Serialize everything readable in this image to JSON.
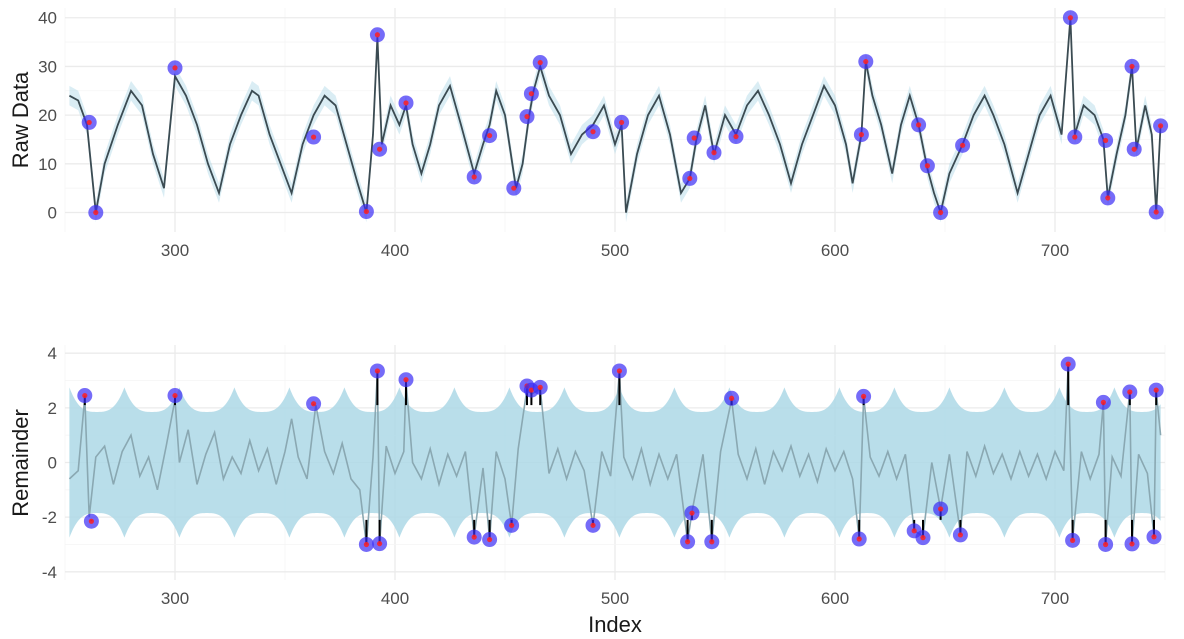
{
  "chart_data": [
    {
      "type": "line",
      "panel": "top",
      "ylabel": "Raw Data",
      "xlabel": "",
      "xlim": [
        250,
        750
      ],
      "ylim": [
        -4,
        42
      ],
      "x_ticks": [
        300,
        400,
        500,
        600,
        700
      ],
      "y_ticks": [
        0,
        10,
        20,
        30,
        40
      ],
      "grid": true,
      "band": "confidence band (light blue) around raw series",
      "series_points": [
        [
          252,
          24
        ],
        [
          256,
          23
        ],
        [
          260,
          18
        ],
        [
          264,
          0
        ],
        [
          268,
          10
        ],
        [
          274,
          18
        ],
        [
          280,
          25
        ],
        [
          285,
          22
        ],
        [
          290,
          12
        ],
        [
          295,
          5
        ],
        [
          300,
          28
        ],
        [
          305,
          24
        ],
        [
          310,
          18
        ],
        [
          315,
          10
        ],
        [
          320,
          4
        ],
        [
          325,
          14
        ],
        [
          330,
          20
        ],
        [
          335,
          25
        ],
        [
          338,
          24
        ],
        [
          343,
          16
        ],
        [
          348,
          10
        ],
        [
          353,
          4
        ],
        [
          358,
          14
        ],
        [
          363,
          20
        ],
        [
          368,
          24
        ],
        [
          373,
          22
        ],
        [
          378,
          14
        ],
        [
          383,
          6
        ],
        [
          387,
          0
        ],
        [
          390,
          16
        ],
        [
          392,
          36
        ],
        [
          394,
          14
        ],
        [
          398,
          22
        ],
        [
          402,
          18
        ],
        [
          405,
          22
        ],
        [
          408,
          14
        ],
        [
          412,
          8
        ],
        [
          416,
          14
        ],
        [
          420,
          22
        ],
        [
          425,
          26
        ],
        [
          430,
          18
        ],
        [
          436,
          8
        ],
        [
          440,
          14
        ],
        [
          443,
          18
        ],
        [
          446,
          25
        ],
        [
          450,
          20
        ],
        [
          455,
          5
        ],
        [
          458,
          10
        ],
        [
          461,
          20
        ],
        [
          463,
          25
        ],
        [
          466,
          30
        ],
        [
          470,
          24
        ],
        [
          475,
          20
        ],
        [
          480,
          12
        ],
        [
          485,
          16
        ],
        [
          490,
          18
        ],
        [
          495,
          22
        ],
        [
          500,
          14
        ],
        [
          503,
          18
        ],
        [
          505,
          0
        ],
        [
          510,
          12
        ],
        [
          515,
          20
        ],
        [
          520,
          24
        ],
        [
          525,
          16
        ],
        [
          530,
          4
        ],
        [
          534,
          7
        ],
        [
          537,
          15
        ],
        [
          541,
          22
        ],
        [
          545,
          12
        ],
        [
          550,
          20
        ],
        [
          555,
          16
        ],
        [
          560,
          22
        ],
        [
          565,
          25
        ],
        [
          570,
          20
        ],
        [
          575,
          14
        ],
        [
          580,
          6
        ],
        [
          585,
          14
        ],
        [
          590,
          20
        ],
        [
          595,
          26
        ],
        [
          600,
          22
        ],
        [
          605,
          14
        ],
        [
          608,
          6
        ],
        [
          612,
          16
        ],
        [
          614,
          31
        ],
        [
          617,
          24
        ],
        [
          621,
          18
        ],
        [
          626,
          8
        ],
        [
          630,
          18
        ],
        [
          634,
          24
        ],
        [
          638,
          18
        ],
        [
          642,
          9
        ],
        [
          645,
          4
        ],
        [
          648,
          0
        ],
        [
          652,
          8
        ],
        [
          658,
          14
        ],
        [
          663,
          20
        ],
        [
          668,
          24
        ],
        [
          672,
          20
        ],
        [
          677,
          14
        ],
        [
          683,
          4
        ],
        [
          688,
          12
        ],
        [
          693,
          20
        ],
        [
          698,
          24
        ],
        [
          703,
          16
        ],
        [
          707,
          40
        ],
        [
          709,
          16
        ],
        [
          713,
          22
        ],
        [
          718,
          20
        ],
        [
          722,
          15
        ],
        [
          724,
          3
        ],
        [
          728,
          12
        ],
        [
          732,
          20
        ],
        [
          735,
          30
        ],
        [
          737,
          13
        ],
        [
          741,
          22
        ],
        [
          744,
          16
        ],
        [
          746,
          0
        ],
        [
          748,
          18
        ]
      ],
      "outliers": [
        {
          "x": 261,
          "y": 18.5
        },
        {
          "x": 264,
          "y": 0
        },
        {
          "x": 300,
          "y": 29.7
        },
        {
          "x": 363,
          "y": 15.5
        },
        {
          "x": 387,
          "y": 0.2
        },
        {
          "x": 392,
          "y": 36.5
        },
        {
          "x": 393,
          "y": 13
        },
        {
          "x": 405,
          "y": 22.5
        },
        {
          "x": 436,
          "y": 7.3
        },
        {
          "x": 443,
          "y": 15.8
        },
        {
          "x": 454,
          "y": 5
        },
        {
          "x": 460,
          "y": 19.7
        },
        {
          "x": 462,
          "y": 24.4
        },
        {
          "x": 466,
          "y": 30.8
        },
        {
          "x": 490,
          "y": 16.6
        },
        {
          "x": 503,
          "y": 18.5
        },
        {
          "x": 534,
          "y": 7
        },
        {
          "x": 536,
          "y": 15.3
        },
        {
          "x": 545,
          "y": 12.3
        },
        {
          "x": 555,
          "y": 15.6
        },
        {
          "x": 612,
          "y": 16
        },
        {
          "x": 614,
          "y": 31
        },
        {
          "x": 638,
          "y": 18
        },
        {
          "x": 642,
          "y": 9.6
        },
        {
          "x": 648,
          "y": 0
        },
        {
          "x": 658,
          "y": 13.8
        },
        {
          "x": 707,
          "y": 40
        },
        {
          "x": 709,
          "y": 15.5
        },
        {
          "x": 723,
          "y": 14.8
        },
        {
          "x": 724,
          "y": 3
        },
        {
          "x": 735,
          "y": 30
        },
        {
          "x": 736,
          "y": 13
        },
        {
          "x": 746,
          "y": 0.1
        },
        {
          "x": 748,
          "y": 17.8
        }
      ]
    },
    {
      "type": "line",
      "panel": "bottom",
      "ylabel": "Remainder",
      "xlabel": "Index",
      "xlim": [
        250,
        750
      ],
      "ylim": [
        -4.3,
        4.3
      ],
      "x_ticks": [
        300,
        400,
        500,
        600,
        700
      ],
      "y_ticks": [
        -4,
        -2,
        0,
        2,
        4
      ],
      "grid": true,
      "band_bounds": [
        -2.1,
        2.1
      ],
      "series_points": [
        [
          252,
          -0.6
        ],
        [
          256,
          -0.3
        ],
        [
          259,
          2.4
        ],
        [
          261,
          -2.0
        ],
        [
          264,
          0.2
        ],
        [
          268,
          0.6
        ],
        [
          272,
          -0.8
        ],
        [
          276,
          0.4
        ],
        [
          280,
          1.0
        ],
        [
          284,
          -0.5
        ],
        [
          288,
          0.2
        ],
        [
          292,
          -1.0
        ],
        [
          296,
          0.6
        ],
        [
          300,
          2.3
        ],
        [
          302,
          0.0
        ],
        [
          306,
          1.2
        ],
        [
          310,
          -0.8
        ],
        [
          314,
          0.3
        ],
        [
          318,
          1.1
        ],
        [
          322,
          -0.6
        ],
        [
          326,
          0.2
        ],
        [
          330,
          -0.4
        ],
        [
          334,
          0.8
        ],
        [
          338,
          -0.3
        ],
        [
          342,
          0.5
        ],
        [
          346,
          -0.8
        ],
        [
          350,
          0.4
        ],
        [
          353,
          1.6
        ],
        [
          356,
          0.2
        ],
        [
          360,
          -0.6
        ],
        [
          364,
          2.1
        ],
        [
          368,
          0.4
        ],
        [
          372,
          -0.4
        ],
        [
          376,
          0.7
        ],
        [
          380,
          -0.6
        ],
        [
          384,
          -1.0
        ],
        [
          387,
          -3.0
        ],
        [
          390,
          0.2
        ],
        [
          392,
          3.3
        ],
        [
          393,
          -3.0
        ],
        [
          396,
          0.6
        ],
        [
          400,
          -0.4
        ],
        [
          404,
          0.4
        ],
        [
          405,
          3.0
        ],
        [
          408,
          0.0
        ],
        [
          412,
          -0.6
        ],
        [
          416,
          0.5
        ],
        [
          420,
          -0.8
        ],
        [
          424,
          0.3
        ],
        [
          428,
          -0.5
        ],
        [
          432,
          0.4
        ],
        [
          436,
          -2.7
        ],
        [
          440,
          -0.2
        ],
        [
          443,
          -2.8
        ],
        [
          446,
          0.4
        ],
        [
          450,
          -0.6
        ],
        [
          453,
          -2.3
        ],
        [
          456,
          0.5
        ],
        [
          460,
          2.7
        ],
        [
          462,
          2.5
        ],
        [
          466,
          2.7
        ],
        [
          470,
          -0.4
        ],
        [
          474,
          0.5
        ],
        [
          478,
          -0.6
        ],
        [
          482,
          0.4
        ],
        [
          486,
          -0.3
        ],
        [
          490,
          -2.3
        ],
        [
          494,
          0.4
        ],
        [
          498,
          -0.5
        ],
        [
          502,
          3.3
        ],
        [
          504,
          0.2
        ],
        [
          508,
          -0.6
        ],
        [
          512,
          0.5
        ],
        [
          516,
          -0.8
        ],
        [
          520,
          0.3
        ],
        [
          524,
          -0.6
        ],
        [
          528,
          0.3
        ],
        [
          533,
          -2.9
        ],
        [
          535,
          -1.8
        ],
        [
          540,
          0.3
        ],
        [
          544,
          -2.9
        ],
        [
          548,
          0.4
        ],
        [
          553,
          2.3
        ],
        [
          556,
          0.3
        ],
        [
          560,
          -0.6
        ],
        [
          564,
          0.5
        ],
        [
          568,
          -0.8
        ],
        [
          572,
          0.4
        ],
        [
          576,
          -0.3
        ],
        [
          580,
          0.6
        ],
        [
          584,
          -0.5
        ],
        [
          588,
          0.3
        ],
        [
          592,
          -0.7
        ],
        [
          596,
          0.5
        ],
        [
          600,
          -0.3
        ],
        [
          604,
          0.4
        ],
        [
          608,
          -0.6
        ],
        [
          611,
          -2.8
        ],
        [
          613,
          2.4
        ],
        [
          616,
          0.2
        ],
        [
          620,
          -0.5
        ],
        [
          624,
          0.4
        ],
        [
          628,
          -0.6
        ],
        [
          632,
          0.3
        ],
        [
          636,
          -2.5
        ],
        [
          640,
          -2.7
        ],
        [
          644,
          0.0
        ],
        [
          648,
          -1.7
        ],
        [
          652,
          0.3
        ],
        [
          657,
          -2.6
        ],
        [
          660,
          0.4
        ],
        [
          664,
          -0.5
        ],
        [
          668,
          0.6
        ],
        [
          672,
          -0.4
        ],
        [
          676,
          0.3
        ],
        [
          680,
          -0.6
        ],
        [
          684,
          0.4
        ],
        [
          688,
          -0.5
        ],
        [
          692,
          0.3
        ],
        [
          696,
          -0.6
        ],
        [
          700,
          0.4
        ],
        [
          704,
          -0.3
        ],
        [
          706,
          3.6
        ],
        [
          708,
          -2.8
        ],
        [
          712,
          0.4
        ],
        [
          716,
          -0.6
        ],
        [
          720,
          0.3
        ],
        [
          722,
          2.2
        ],
        [
          723,
          -3.0
        ],
        [
          726,
          0.2
        ],
        [
          730,
          -0.5
        ],
        [
          734,
          2.6
        ],
        [
          735,
          -3.0
        ],
        [
          738,
          0.3
        ],
        [
          742,
          -0.4
        ],
        [
          745,
          -2.7
        ],
        [
          746,
          2.6
        ],
        [
          748,
          1.0
        ]
      ],
      "outliers": [
        {
          "x": 259,
          "y": 2.45
        },
        {
          "x": 262,
          "y": -2.15
        },
        {
          "x": 300,
          "y": 2.45
        },
        {
          "x": 363,
          "y": 2.15
        },
        {
          "x": 387,
          "y": -3.0
        },
        {
          "x": 392,
          "y": 3.35
        },
        {
          "x": 393,
          "y": -2.97
        },
        {
          "x": 405,
          "y": 3.03
        },
        {
          "x": 436,
          "y": -2.73
        },
        {
          "x": 443,
          "y": -2.82
        },
        {
          "x": 453,
          "y": -2.3
        },
        {
          "x": 460,
          "y": 2.8
        },
        {
          "x": 462,
          "y": 2.65
        },
        {
          "x": 466,
          "y": 2.75
        },
        {
          "x": 490,
          "y": -2.3
        },
        {
          "x": 502,
          "y": 3.35
        },
        {
          "x": 533,
          "y": -2.9
        },
        {
          "x": 535,
          "y": -1.85
        },
        {
          "x": 544,
          "y": -2.9
        },
        {
          "x": 553,
          "y": 2.35
        },
        {
          "x": 611,
          "y": -2.8
        },
        {
          "x": 613,
          "y": 2.42
        },
        {
          "x": 636,
          "y": -2.5
        },
        {
          "x": 640,
          "y": -2.75
        },
        {
          "x": 648,
          "y": -1.7
        },
        {
          "x": 657,
          "y": -2.65
        },
        {
          "x": 706,
          "y": 3.6
        },
        {
          "x": 708,
          "y": -2.85
        },
        {
          "x": 722,
          "y": 2.2
        },
        {
          "x": 723,
          "y": -3.0
        },
        {
          "x": 734,
          "y": 2.58
        },
        {
          "x": 735,
          "y": -2.98
        },
        {
          "x": 745,
          "y": -2.72
        },
        {
          "x": 746,
          "y": 2.65
        }
      ]
    }
  ],
  "colors": {
    "band": "#add8e6",
    "raw_line": "#3b4b52",
    "remainder_line": "#8aa8b2",
    "outlier_fill": "#3b2cf5",
    "outlier_center": "#ff2020",
    "segment": "#000000",
    "grid_major": "#ebebeb",
    "grid_minor": "#f5f5f5"
  }
}
